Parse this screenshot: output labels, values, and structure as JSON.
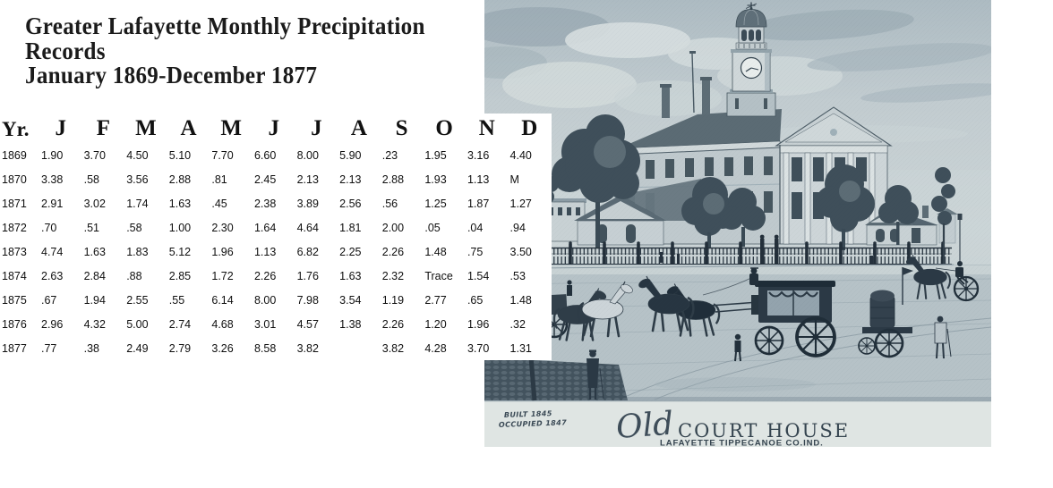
{
  "title": {
    "lines": [
      "Greater Lafayette Monthly Precipitation",
      "Records",
      "January 1869-December 1877"
    ]
  },
  "table": {
    "year_header": "Yr.",
    "month_headers": [
      "J",
      "F",
      "M",
      "A",
      "M",
      "J",
      "J",
      "A",
      "S",
      "O",
      "N",
      "D"
    ],
    "rows": [
      {
        "year": "1869",
        "values": [
          "1.90",
          "3.70",
          "4.50",
          "5.10",
          "7.70",
          "6.60",
          "8.00",
          "5.90",
          ".23",
          "1.95",
          "3.16",
          "4.40"
        ]
      },
      {
        "year": "1870",
        "values": [
          "3.38",
          ".58",
          "3.56",
          "2.88",
          ".81",
          "2.45",
          "2.13",
          "2.13",
          "2.88",
          "1.93",
          "1.13",
          "M"
        ]
      },
      {
        "year": "1871",
        "values": [
          "2.91",
          "3.02",
          "1.74",
          "1.63",
          ".45",
          "2.38",
          "3.89",
          "2.56",
          ".56",
          "1.25",
          "1.87",
          "1.27"
        ]
      },
      {
        "year": "1872",
        "values": [
          ".70",
          ".51",
          ".58",
          "1.00",
          "2.30",
          "1.64",
          "4.64",
          "1.81",
          "2.00",
          ".05",
          ".04",
          ".94"
        ]
      },
      {
        "year": "1873",
        "values": [
          "4.74",
          "1.63",
          "1.83",
          "5.12",
          "1.96",
          "1.13",
          "6.82",
          "2.25",
          "2.26",
          "1.48",
          ".75",
          "3.50"
        ]
      },
      {
        "year": "1874",
        "values": [
          "2.63",
          "2.84",
          ".88",
          "2.85",
          "1.72",
          "2.26",
          "1.76",
          "1.63",
          "2.32",
          "Trace",
          "1.54",
          ".53"
        ]
      },
      {
        "year": "1875",
        "values": [
          ".67",
          "1.94",
          "2.55",
          ".55",
          "6.14",
          "8.00",
          "7.98",
          "3.54",
          "1.19",
          "2.77",
          ".65",
          "1.48"
        ]
      },
      {
        "year": "1876",
        "values": [
          "2.96",
          "4.32",
          "5.00",
          "2.74",
          "4.68",
          "3.01",
          "4.57",
          "1.38",
          "2.26",
          "1.20",
          "1.96",
          ".32"
        ]
      },
      {
        "year": "1877",
        "values": [
          ".77",
          ".38",
          "2.49",
          "2.79",
          "3.26",
          "8.58",
          "3.82",
          "",
          "3.82",
          "4.28",
          "3.70",
          "1.31"
        ]
      }
    ]
  },
  "engraving": {
    "built_label": "BUILT 1845",
    "occupied_label": "OCCUPIED 1847",
    "caption_script": "Old",
    "caption_main": "COURT HOUSE",
    "caption_sub": "LAFAYETTE TIPPECANOE CO.IND.",
    "tone_color": "#42525c",
    "sky_color": "#c3ced2",
    "caption_strip_color": "#dfe5e3"
  }
}
